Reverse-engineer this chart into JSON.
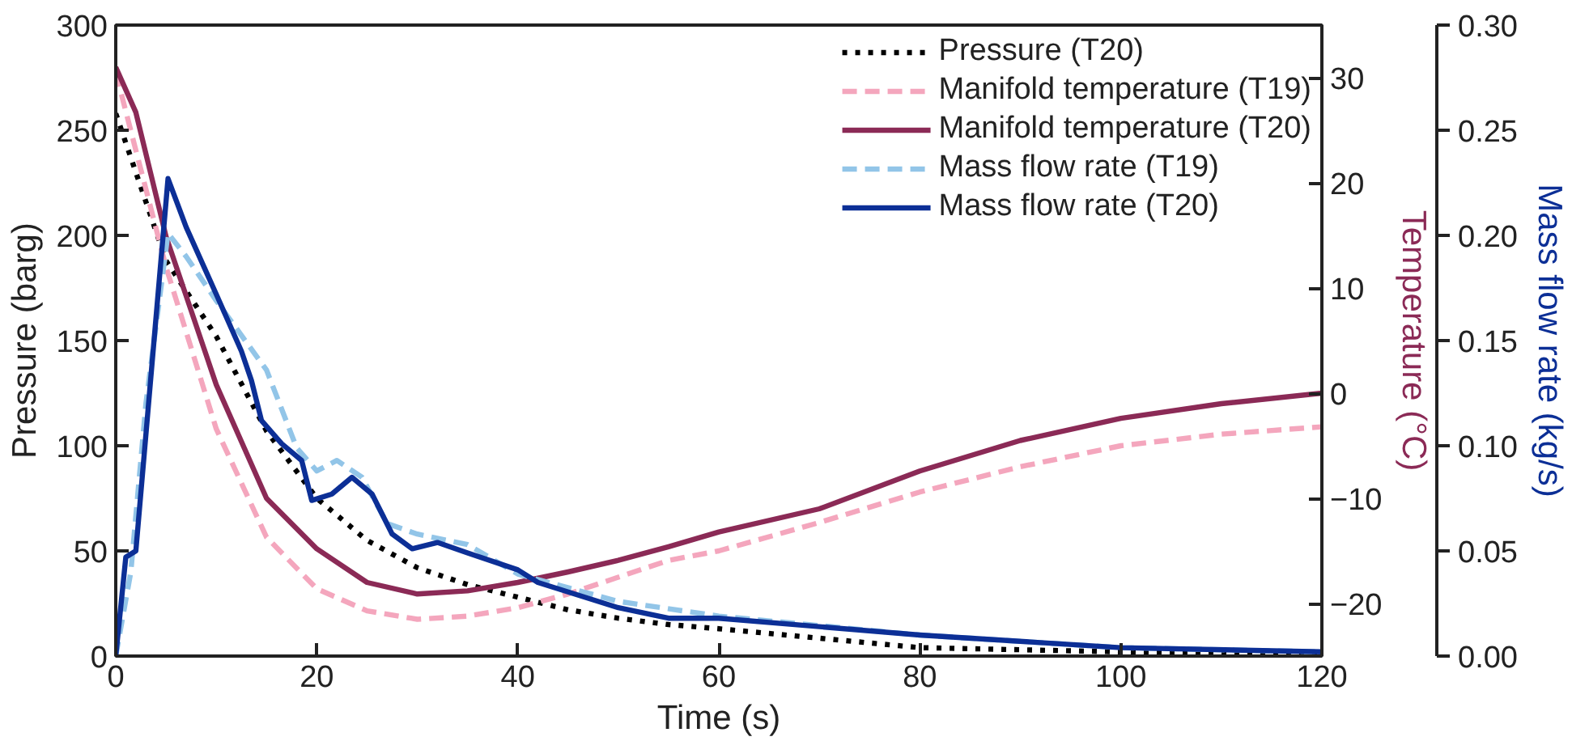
{
  "chart_data": {
    "type": "line",
    "xlabel": "Time (s)",
    "ylabel": "Pressure (barg)",
    "y2label": "Temperature (°C)",
    "y3label": "Mass flow rate (kg/s)",
    "xlim": [
      0,
      120
    ],
    "xticks": [
      0,
      20,
      40,
      60,
      80,
      100,
      120
    ],
    "ylim": [
      0,
      300
    ],
    "yticks": [
      0,
      50,
      100,
      150,
      200,
      250,
      300
    ],
    "y2lim": [
      -25,
      35
    ],
    "y2ticks": [
      {
        "value": -20,
        "label": "−20"
      },
      {
        "value": -10,
        "label": "−10"
      },
      0,
      10,
      20,
      30
    ],
    "y3lim": [
      0,
      0.3
    ],
    "y3ticks": [
      {
        "value": 0,
        "label": "0.00"
      },
      {
        "value": 0.05,
        "label": "0.05"
      },
      {
        "value": 0.1,
        "label": "0.10"
      },
      {
        "value": 0.15,
        "label": "0.15"
      },
      {
        "value": 0.2,
        "label": "0.20"
      },
      {
        "value": 0.25,
        "label": "0.25"
      },
      {
        "value": 0.3,
        "label": "0.30"
      }
    ],
    "grid": false,
    "legend": "top right",
    "series": [
      {
        "name": "Pressure (T20)",
        "color": "#000000",
        "line_style": "dotted",
        "x": [
          0,
          5,
          10,
          15,
          20,
          25,
          30,
          35,
          40,
          45,
          50,
          55,
          60,
          80,
          100,
          120
        ],
        "values": [
          258,
          188,
          152,
          107,
          75,
          55,
          42,
          34,
          28,
          22,
          18,
          15,
          13,
          4,
          2,
          0.5
        ]
      },
      {
        "name": "Manifold temperature (T19)",
        "color": "#f4a6bd",
        "line_style": "dashed",
        "axis": "y2",
        "x": [
          0,
          5,
          10,
          15,
          20,
          25,
          30,
          35,
          40,
          45,
          50,
          55,
          60,
          70,
          80,
          90,
          100,
          110,
          120
        ],
        "values": [
          30.5,
          12,
          -3.4,
          -13.7,
          -18.6,
          -20.7,
          -21.5,
          -21.2,
          -20.4,
          -19.1,
          -17.5,
          -15.9,
          -15,
          -12.3,
          -9.4,
          -7,
          -5,
          -3.9,
          -3.2
        ]
      },
      {
        "name": "Manifold temperature (T20)",
        "color": "#8b2a56",
        "line_style": "solid",
        "axis": "y2",
        "x": [
          0,
          2,
          5,
          10,
          15,
          20,
          25,
          30,
          35,
          40,
          45,
          50,
          55,
          60,
          70,
          80,
          90,
          100,
          110,
          120
        ],
        "values": [
          31,
          26.7,
          14.9,
          0.8,
          -10,
          -14.8,
          -18,
          -19.1,
          -18.8,
          -18,
          -17,
          -15.9,
          -14.6,
          -13.2,
          -11,
          -7.4,
          -4.5,
          -2.4,
          -1,
          0
        ]
      },
      {
        "name": "Mass flow rate (T19)",
        "color": "#92c5e8",
        "line_style": "dashed",
        "axis": "y3",
        "x": [
          0,
          1.5,
          3,
          5.2,
          7,
          10,
          15,
          18,
          20,
          22,
          24.5,
          27,
          30,
          35,
          40,
          50,
          60,
          80,
          100,
          120
        ],
        "values": [
          0,
          0.04,
          0.12,
          0.201,
          0.19,
          0.169,
          0.136,
          0.099,
          0.088,
          0.093,
          0.085,
          0.063,
          0.058,
          0.053,
          0.039,
          0.026,
          0.019,
          0.01,
          0.004,
          0.002
        ]
      },
      {
        "name": "Mass flow rate (T20)",
        "color": "#0c2f96",
        "line_style": "solid",
        "axis": "y3",
        "x": [
          0,
          1,
          2,
          5.2,
          7,
          10,
          12.5,
          13.5,
          14.5,
          16.5,
          18.5,
          19.5,
          21.5,
          23.5,
          25.5,
          27.5,
          29.5,
          32,
          35,
          40,
          42,
          50,
          55,
          60,
          80,
          100,
          120
        ],
        "values": [
          0,
          0.047,
          0.05,
          0.227,
          0.204,
          0.172,
          0.145,
          0.131,
          0.112,
          0.101,
          0.093,
          0.074,
          0.077,
          0.085,
          0.077,
          0.058,
          0.051,
          0.054,
          0.049,
          0.041,
          0.035,
          0.023,
          0.018,
          0.018,
          0.01,
          0.004,
          0.002
        ]
      }
    ]
  }
}
